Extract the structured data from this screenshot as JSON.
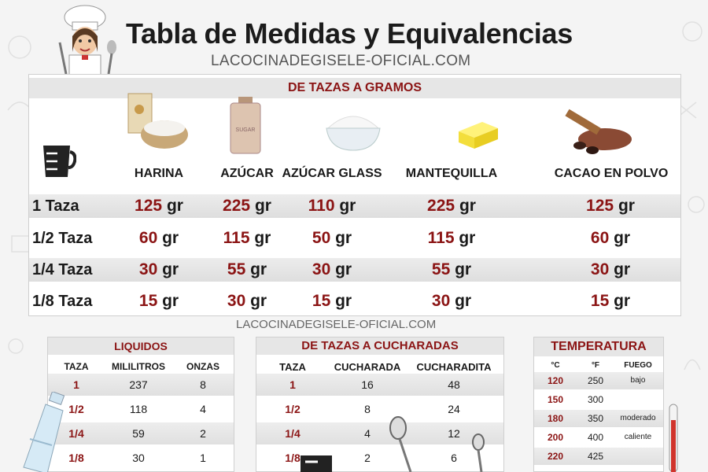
{
  "title": "Tabla de Medidas y Equivalencias",
  "website": "LACOCINADEGISELE-OFICIAL.COM",
  "main": {
    "header": "DE TAZAS A GRAMOS",
    "columns": [
      "HARINA",
      "AZÚCAR",
      "AZÚCAR GLASS",
      "MANTEQUILLA",
      "CACAO EN POLVO"
    ],
    "sugar_jar_label": "SUGAR",
    "unit": "gr",
    "rows": [
      {
        "label": "1 Taza",
        "values": [
          "125",
          "225",
          "110",
          "225",
          "125"
        ]
      },
      {
        "label": "1/2 Taza",
        "values": [
          "60",
          "115",
          "50",
          "115",
          "60"
        ]
      },
      {
        "label": "1/4 Taza",
        "values": [
          "30",
          "55",
          "30",
          "55",
          "30"
        ]
      },
      {
        "label": "1/8 Taza",
        "values": [
          "15",
          "30",
          "15",
          "30",
          "15"
        ]
      }
    ]
  },
  "liquidos": {
    "title": "LIQUIDOS",
    "headers": [
      "TAZA",
      "MILILITROS",
      "ONZAS"
    ],
    "rows": [
      [
        "1",
        "237",
        "8"
      ],
      [
        "1/2",
        "118",
        "4"
      ],
      [
        "1/4",
        "59",
        "2"
      ],
      [
        "1/8",
        "30",
        "1"
      ]
    ]
  },
  "cucharadas": {
    "title": "DE TAZAS A CUCHARADAS",
    "headers": [
      "TAZA",
      "CUCHARADA",
      "CUCHARADITA"
    ],
    "rows": [
      [
        "1",
        "16",
        "48"
      ],
      [
        "1/2",
        "8",
        "24"
      ],
      [
        "1/4",
        "4",
        "12"
      ],
      [
        "1/8",
        "2",
        "6"
      ]
    ]
  },
  "temperatura": {
    "title": "TEMPERATURA",
    "headers": [
      "°C",
      "°F",
      "FUEGO"
    ],
    "rows": [
      [
        "120",
        "250",
        "bajo"
      ],
      [
        "150",
        "300",
        ""
      ],
      [
        "180",
        "350",
        "moderado"
      ],
      [
        "200",
        "400",
        "caliente"
      ],
      [
        "220",
        "425",
        ""
      ]
    ]
  },
  "colors": {
    "accent": "#8b1414",
    "header_bg": "#e6e6e6"
  }
}
